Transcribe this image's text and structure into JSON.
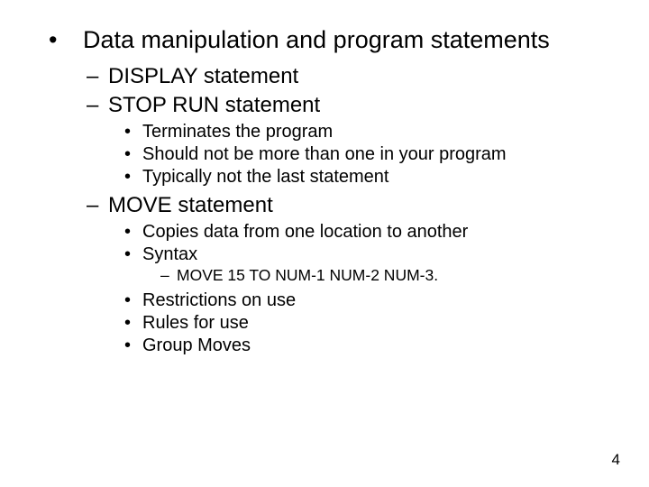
{
  "slide": {
    "background_color": "#ffffff",
    "text_color": "#000000",
    "font_family": "Arial",
    "page_number": "4",
    "level1": {
      "bullet": "•",
      "fontsize": 27,
      "text": "Data manipulation and program statements"
    },
    "level2_items": [
      {
        "dash": "–",
        "text": "DISPLAY statement"
      },
      {
        "dash": "–",
        "text": "STOP RUN statement"
      },
      {
        "dash": "–",
        "text": "MOVE statement"
      }
    ],
    "stop_run_sub": [
      {
        "bullet": "•",
        "text": "Terminates the program"
      },
      {
        "bullet": "•",
        "text": "Should not be more than one in your program"
      },
      {
        "bullet": "•",
        "text": "Typically not the last statement"
      }
    ],
    "move_sub": [
      {
        "bullet": "•",
        "text": "Copies data from one location to another"
      },
      {
        "bullet": "•",
        "text": "Syntax"
      }
    ],
    "syntax_sub": [
      {
        "dash": "–",
        "text": "MOVE 15 TO NUM-1 NUM-2 NUM-3."
      }
    ],
    "move_sub2": [
      {
        "bullet": "•",
        "text": "Restrictions on use"
      },
      {
        "bullet": "•",
        "text": "Rules for use"
      },
      {
        "bullet": "•",
        "text": "Group Moves"
      }
    ],
    "level2_fontsize": 24,
    "level3_fontsize": 20,
    "level4_fontsize": 17.5
  }
}
